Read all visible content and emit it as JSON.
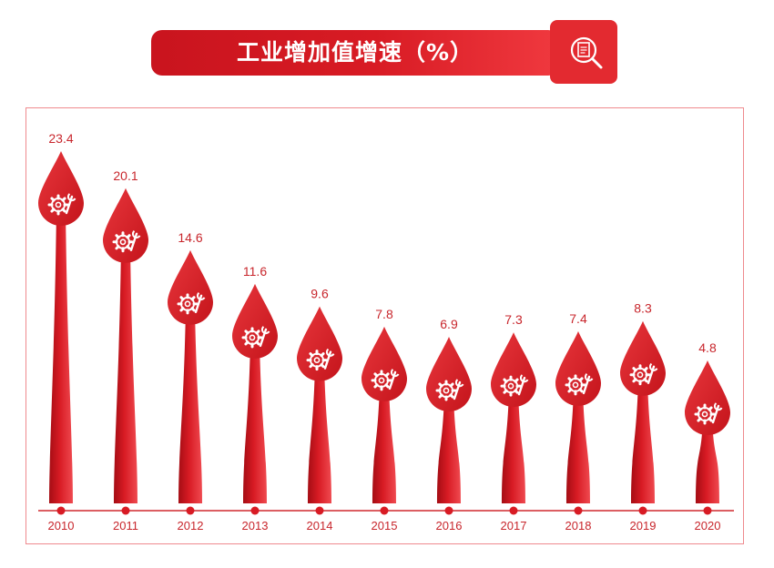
{
  "header": {
    "title": "工业增加值增速（%）",
    "icon": "document-magnifier-icon"
  },
  "colors": {
    "primary_red": "#d81b24",
    "dark_red": "#a50d14",
    "light_red": "#ef4a50",
    "frame_border": "#ef8a8e",
    "label_text": "#c8262c"
  },
  "chart_data": {
    "type": "bar",
    "title": "工业增加值增速（%）",
    "categories": [
      "2010",
      "2011",
      "2012",
      "2013",
      "2014",
      "2015",
      "2016",
      "2017",
      "2018",
      "2019",
      "2020"
    ],
    "values": [
      23.4,
      20.1,
      14.6,
      11.6,
      9.6,
      7.8,
      6.9,
      7.3,
      7.4,
      8.3,
      4.8
    ],
    "value_labels": [
      "23.4",
      "20.1",
      "14.6",
      "11.6",
      "9.6",
      "7.8",
      "6.9",
      "7.3",
      "7.4",
      "8.3",
      "4.8"
    ],
    "marker_icon": "gear-wrench-icon",
    "grid": false,
    "legend": "none"
  }
}
